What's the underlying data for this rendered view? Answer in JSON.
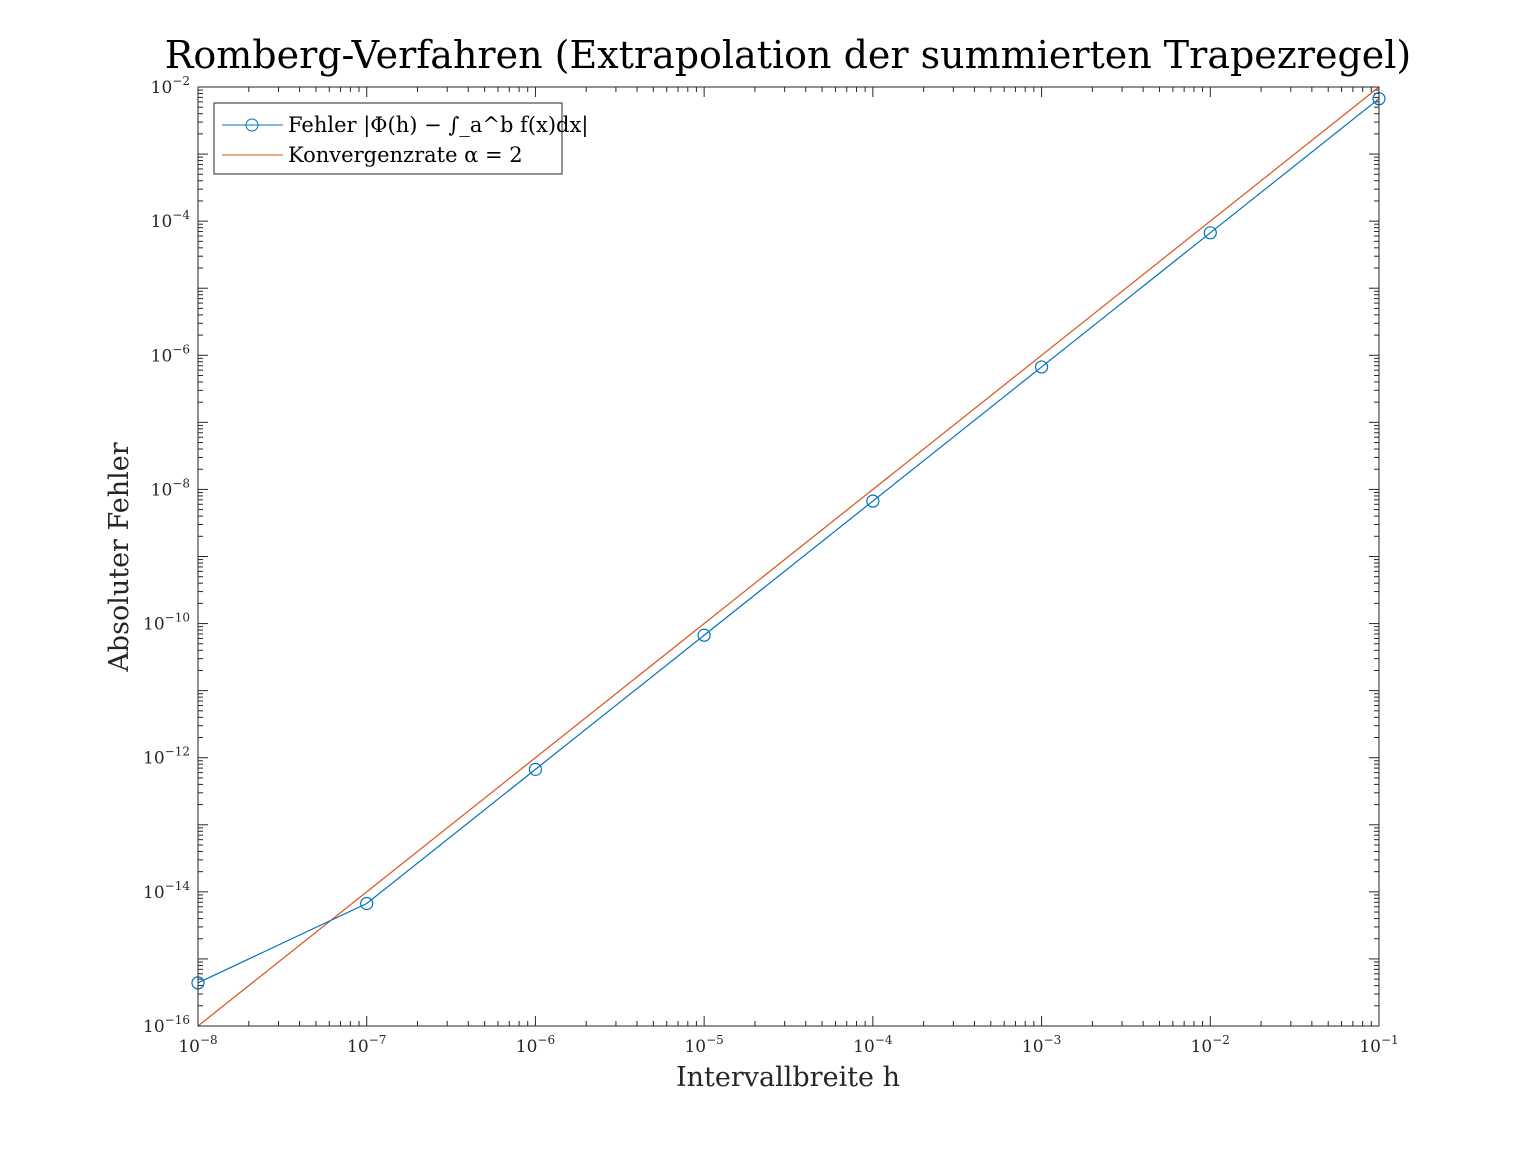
{
  "chart_data": {
    "type": "line",
    "title": "Romberg-Verfahren (Extrapolation der summierten Trapezregel)",
    "xlabel": "Intervallbreite h",
    "ylabel": "Absoluter Fehler",
    "xscale": "log",
    "yscale": "log",
    "xlim": [
      1e-08,
      0.1
    ],
    "ylim": [
      1e-16,
      0.01
    ],
    "xticks": [
      1e-08,
      1e-07,
      1e-06,
      1e-05,
      0.0001,
      0.001,
      0.01,
      0.1
    ],
    "xtick_labels": [
      "10^-8",
      "10^-7",
      "10^-6",
      "10^-5",
      "10^-4",
      "10^-3",
      "10^-2",
      "10^-1"
    ],
    "yticks": [
      1e-16,
      1e-14,
      1e-12,
      1e-10,
      1e-08,
      1e-06,
      0.0001,
      0.01
    ],
    "ytick_labels": [
      "10^-16",
      "10^-14",
      "10^-12",
      "10^-10",
      "10^-8",
      "10^-6",
      "10^-4",
      "10^-2"
    ],
    "grid": false,
    "legend_position": "top-left",
    "series": [
      {
        "name": "Fehler |Φ(h) − ∫_a^b f(x)dx|",
        "color": "#0072bd",
        "marker": "circle",
        "x": [
          1e-08,
          1e-07,
          1e-06,
          1e-05,
          0.0001,
          0.001,
          0.01,
          0.1
        ],
        "y": [
          4.4e-16,
          6.7e-15,
          6.7e-13,
          6.7e-11,
          6.7e-09,
          6.7e-07,
          6.7e-05,
          0.0067
        ]
      },
      {
        "name": "Konvergenzrate α = 2",
        "color": "#d95319",
        "marker": "none",
        "x": [
          1e-08,
          0.1
        ],
        "y": [
          1e-16,
          0.01
        ]
      }
    ]
  }
}
